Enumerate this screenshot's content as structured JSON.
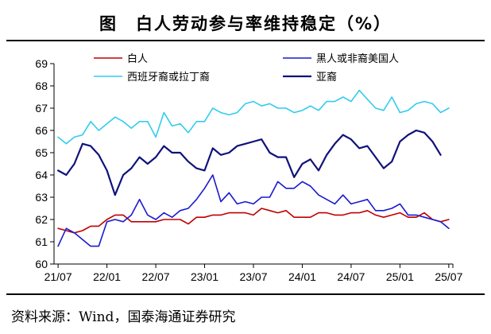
{
  "title": "图　白人劳动参与率维持稳定（%）",
  "source": "资料来源：Wind，国泰海通证券研究",
  "colors": {
    "white": "#c00000",
    "black": "#1a1ad0",
    "hispanic": "#33ccee",
    "asian": "#10127a"
  },
  "chart_data": {
    "type": "line",
    "title": "",
    "xlabel": "",
    "ylabel": "",
    "ylim": [
      60,
      69
    ],
    "yticks": [
      60,
      61,
      62,
      63,
      64,
      65,
      66,
      67,
      68,
      69
    ],
    "xticks": [
      "21/07",
      "22/01",
      "22/07",
      "23/01",
      "23/07",
      "24/01",
      "24/07",
      "25/01",
      "25/07"
    ],
    "grid": false,
    "legend": "top",
    "x": [
      "21/07",
      "21/08",
      "21/09",
      "21/10",
      "21/11",
      "21/12",
      "22/01",
      "22/02",
      "22/03",
      "22/04",
      "22/05",
      "22/06",
      "22/07",
      "22/08",
      "22/09",
      "22/10",
      "22/11",
      "22/12",
      "23/01",
      "23/02",
      "23/03",
      "23/04",
      "23/05",
      "23/06",
      "23/07",
      "23/08",
      "23/09",
      "23/10",
      "23/11",
      "23/12",
      "24/01",
      "24/02",
      "24/03",
      "24/04",
      "24/05",
      "24/06",
      "24/07",
      "24/08",
      "24/09",
      "24/10",
      "24/11",
      "24/12",
      "25/01",
      "25/02",
      "25/03",
      "25/04",
      "25/05",
      "25/06",
      "25/07"
    ],
    "series": [
      {
        "name": "白人",
        "key": "white",
        "values": [
          61.6,
          61.5,
          61.4,
          61.5,
          61.7,
          61.7,
          62.0,
          62.2,
          62.2,
          61.9,
          61.9,
          61.9,
          61.9,
          62.0,
          62.0,
          62.0,
          61.8,
          62.1,
          62.1,
          62.2,
          62.2,
          62.3,
          62.3,
          62.3,
          62.2,
          62.5,
          62.4,
          62.3,
          62.4,
          62.1,
          62.1,
          62.1,
          62.3,
          62.3,
          62.2,
          62.2,
          62.3,
          62.3,
          62.4,
          62.2,
          62.1,
          62.2,
          62.3,
          62.1,
          62.1,
          62.3,
          62.0,
          61.9,
          62.0
        ]
      },
      {
        "name": "黑人或非裔美国人",
        "key": "black",
        "values": [
          60.8,
          61.6,
          61.4,
          61.1,
          60.8,
          60.8,
          61.9,
          62.0,
          61.9,
          62.2,
          62.9,
          62.2,
          62.0,
          62.3,
          62.1,
          62.4,
          62.5,
          62.9,
          63.4,
          64.0,
          62.8,
          63.2,
          62.7,
          62.8,
          62.7,
          63.0,
          63.0,
          63.7,
          63.4,
          63.4,
          63.7,
          63.5,
          63.1,
          62.9,
          62.7,
          63.1,
          62.7,
          62.8,
          62.9,
          62.4,
          62.4,
          62.5,
          62.7,
          62.2,
          62.2,
          62.1,
          62.0,
          61.9,
          61.6
        ]
      },
      {
        "name": "西班牙裔或拉丁裔",
        "key": "hispanic",
        "values": [
          65.7,
          65.4,
          65.7,
          65.8,
          66.4,
          66.0,
          66.3,
          66.6,
          66.4,
          66.1,
          66.4,
          66.4,
          65.7,
          66.8,
          66.2,
          66.3,
          65.9,
          66.4,
          66.4,
          67.0,
          66.8,
          66.7,
          66.8,
          67.2,
          67.3,
          67.1,
          67.2,
          67.0,
          67.0,
          66.8,
          66.9,
          67.1,
          66.9,
          67.3,
          67.3,
          67.5,
          67.3,
          67.8,
          67.4,
          67.0,
          66.9,
          67.5,
          66.8,
          66.9,
          67.2,
          67.3,
          67.2,
          66.8,
          67.0
        ]
      },
      {
        "name": "亚裔",
        "key": "asian",
        "values": [
          64.2,
          64.0,
          64.5,
          65.4,
          65.3,
          64.9,
          64.2,
          63.1,
          64.0,
          64.3,
          64.8,
          64.5,
          64.8,
          65.3,
          65.0,
          65.0,
          64.6,
          64.3,
          64.2,
          65.2,
          64.9,
          65.0,
          65.3,
          65.4,
          65.5,
          65.6,
          65.0,
          64.8,
          64.8,
          63.9,
          64.5,
          64.7,
          64.2,
          64.9,
          65.4,
          65.8,
          65.6,
          65.2,
          65.3,
          64.8,
          64.3,
          64.6,
          65.5,
          65.8,
          66.0,
          65.9,
          65.5,
          64.9,
          null
        ]
      }
    ]
  }
}
